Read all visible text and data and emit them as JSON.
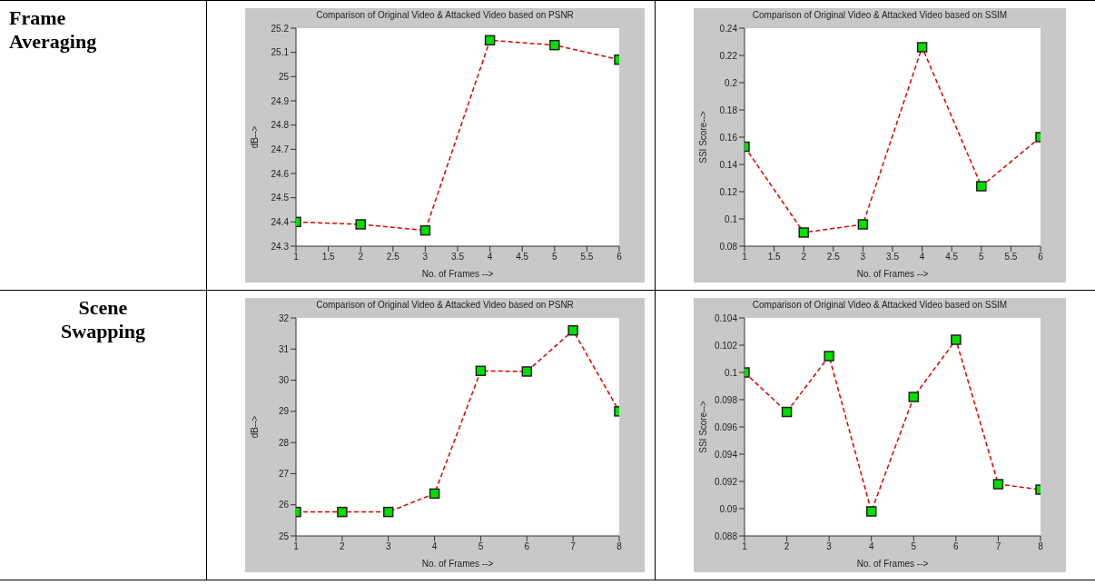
{
  "chart_data": [
    {
      "type": "line",
      "title": "Comparison of Original Video & Attacked Video based on PSNR",
      "xlabel": "No. of Frames -->",
      "ylabel": "dB-->",
      "annotations": [
        "Frame Averaging"
      ],
      "x": [
        1,
        2,
        3,
        4,
        5,
        6
      ],
      "series": [
        {
          "color": "#e00000",
          "values": [
            24.4,
            24.39,
            24.365,
            25.15,
            25.13,
            25.07
          ]
        }
      ],
      "xlim": [
        1,
        6
      ],
      "xticks": [
        1,
        1.5,
        2,
        2.5,
        3,
        3.5,
        4,
        4.5,
        5,
        5.5,
        6
      ],
      "ylim": [
        24.3,
        25.2
      ],
      "yticks": [
        24.3,
        24.4,
        24.5,
        24.6,
        24.7,
        24.8,
        24.9,
        25,
        25.1,
        25.2
      ],
      "marker": "square",
      "line_style": "dashed",
      "grid": false,
      "legend": false
    },
    {
      "type": "line",
      "title": "Comparison of Original Video & Attacked Video based on SSIM",
      "xlabel": "No. of Frames -->",
      "ylabel": "SSI Score-->",
      "x": [
        1,
        2,
        3,
        4,
        5,
        6
      ],
      "series": [
        {
          "color": "#e00000",
          "values": [
            0.153,
            0.09,
            0.096,
            0.226,
            0.124,
            0.16
          ]
        }
      ],
      "xlim": [
        1,
        6
      ],
      "xticks": [
        1,
        1.5,
        2,
        2.5,
        3,
        3.5,
        4,
        4.5,
        5,
        5.5,
        6
      ],
      "ylim": [
        0.08,
        0.24
      ],
      "yticks": [
        0.08,
        0.1,
        0.12,
        0.14,
        0.16,
        0.18,
        0.2,
        0.22,
        0.24
      ],
      "marker": "square",
      "line_style": "dashed",
      "grid": false,
      "legend": false
    },
    {
      "type": "line",
      "title": "Comparison of Original Video & Attacked Video based on PSNR",
      "xlabel": "No. of Frames -->",
      "ylabel": "dB-->",
      "annotations": [
        "Scene Swapping"
      ],
      "x": [
        1,
        2,
        3,
        4,
        5,
        6,
        7,
        8
      ],
      "series": [
        {
          "color": "#e00000",
          "values": [
            25.77,
            25.77,
            25.77,
            26.36,
            30.3,
            30.28,
            31.6,
            29.0
          ]
        }
      ],
      "xlim": [
        1,
        8
      ],
      "xticks": [
        1,
        2,
        3,
        4,
        5,
        6,
        7,
        8
      ],
      "ylim": [
        25,
        32
      ],
      "yticks": [
        25,
        26,
        27,
        28,
        29,
        30,
        31,
        32
      ],
      "marker": "square",
      "line_style": "dashed",
      "grid": false,
      "legend": false
    },
    {
      "type": "line",
      "title": "Comparison of Original Video & Attacked Video based on SSIM",
      "xlabel": "No. of Frames -->",
      "ylabel": "SSI Score-->",
      "x": [
        1,
        2,
        3,
        4,
        5,
        6,
        7,
        8
      ],
      "series": [
        {
          "color": "#e00000",
          "values": [
            0.1,
            0.0971,
            0.1012,
            0.0898,
            0.0982,
            0.1024,
            0.0918,
            0.0914
          ]
        }
      ],
      "xlim": [
        1,
        8
      ],
      "xticks": [
        1,
        2,
        3,
        4,
        5,
        6,
        7,
        8
      ],
      "ylim": [
        0.088,
        0.104
      ],
      "yticks": [
        0.088,
        0.09,
        0.092,
        0.094,
        0.096,
        0.098,
        0.1,
        0.102,
        0.104
      ],
      "marker": "square",
      "line_style": "dashed",
      "grid": false,
      "legend": false
    }
  ]
}
